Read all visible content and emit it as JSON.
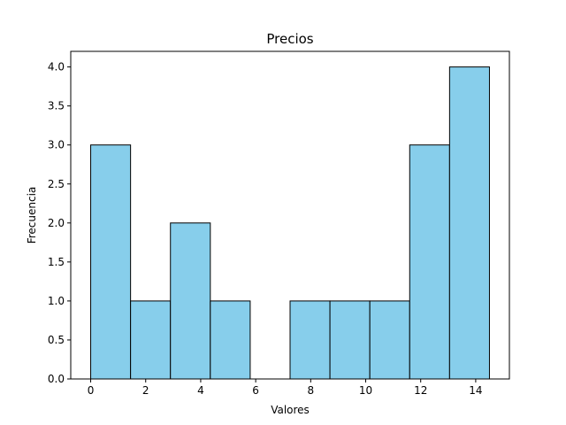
{
  "chart_data": {
    "type": "bar",
    "title": "Precios",
    "xlabel": "Valores",
    "ylabel": "Frecuencia",
    "bin_edges": [
      0,
      1.45,
      2.9,
      4.35,
      5.8,
      7.25,
      8.7,
      10.15,
      11.6,
      13.05,
      14.5
    ],
    "values": [
      3,
      1,
      2,
      1,
      0,
      1,
      1,
      1,
      3,
      4
    ],
    "xlim": [
      -0.725,
      15.225
    ],
    "ylim": [
      0,
      4.2
    ],
    "xticks": [
      0,
      2,
      4,
      6,
      8,
      10,
      12,
      14
    ],
    "xtick_labels": [
      "0",
      "2",
      "4",
      "6",
      "8",
      "10",
      "12",
      "14"
    ],
    "yticks": [
      0,
      0.5,
      1,
      1.5,
      2,
      2.5,
      3,
      3.5,
      4
    ],
    "ytick_labels": [
      "0.0",
      "0.5",
      "1.0",
      "1.5",
      "2.0",
      "2.5",
      "3.0",
      "3.5",
      "4.0"
    ],
    "bar_color": "#87ceeb",
    "edge_color": "#000000",
    "grid": false
  }
}
